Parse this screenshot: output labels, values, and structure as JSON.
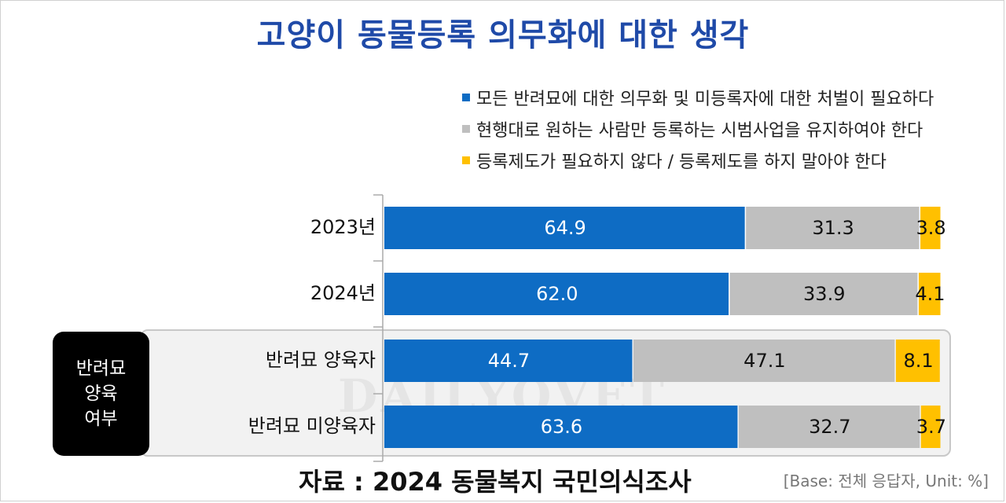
{
  "title": "고양이 동물등록 의무화에 대한 생각",
  "legend": [
    {
      "label": "모든 반려묘에 대한 의무화 및 미등록자에 대한 처벌이 필요하다",
      "color": "#0e6cc4"
    },
    {
      "label": "현행대로 원하는 사람만 등록하는 시범사업을 유지하여야 한다",
      "color": "#bfbfbf"
    },
    {
      "label": "등록제도가 필요하지 않다 / 등록제도를 하지 말아야 한다",
      "color": "#ffc000"
    }
  ],
  "group_badge": {
    "line1": "반려묘",
    "line2": "양육",
    "line3": "여부"
  },
  "watermark": "DAILYOVET",
  "footer": {
    "source": "자료 : 2024 동물복지 국민의식조사",
    "base": "[Base: 전체 응답자, Unit: %]"
  },
  "chart_data": {
    "type": "bar",
    "orientation": "horizontal",
    "stacked": true,
    "categories": [
      "2023년",
      "2024년",
      "반려묘 양육자",
      "반려묘 미양육자"
    ],
    "series": [
      {
        "name": "모든 반려묘에 대한 의무화 및 미등록자에 대한 처벌이 필요하다",
        "values": [
          64.9,
          62.0,
          44.7,
          63.6
        ],
        "labels": [
          "64.9",
          "62.0",
          "44.7",
          "63.6"
        ],
        "color": "#0e6cc4",
        "label_color": "#ffffff"
      },
      {
        "name": "현행대로 원하는 사람만 등록하는 시범사업을 유지하여야 한다",
        "values": [
          31.3,
          33.9,
          47.1,
          32.7
        ],
        "labels": [
          "31.3",
          "33.9",
          "47.1",
          "32.7"
        ],
        "color": "#bfbfbf",
        "label_color": "#111111"
      },
      {
        "name": "등록제도가 필요하지 않다 / 등록제도를 하지 말아야 한다",
        "values": [
          3.8,
          4.1,
          8.1,
          3.7
        ],
        "labels": [
          "3.8",
          "4.1",
          "8.1",
          "3.7"
        ],
        "color": "#ffc000",
        "label_color": "#111111"
      }
    ],
    "xlim": [
      0,
      100
    ],
    "legend_position": "top-right",
    "grid": false
  }
}
